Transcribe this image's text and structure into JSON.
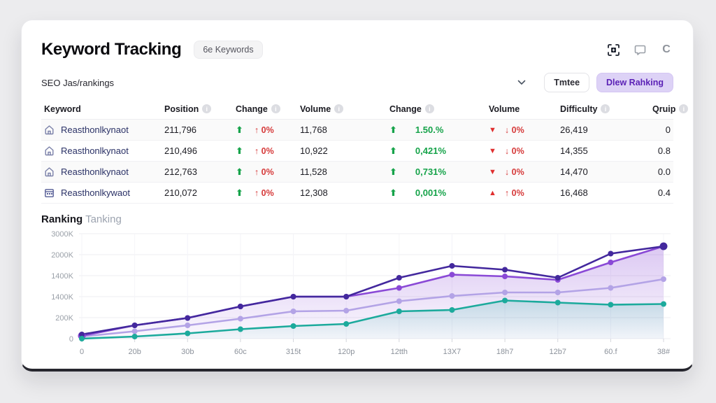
{
  "header": {
    "title": "Keyword Tracking",
    "badge": "6e Keywords",
    "icons": [
      "scan-icon",
      "comment-icon",
      "refresh-icon"
    ],
    "refresh_glyph": "C"
  },
  "filterbar": {
    "source": "SEO Jas/rankings",
    "secondary_button": "Tmtee",
    "primary_button": "Dlew Rahking"
  },
  "colors": {
    "accent_purple": "#5b21b6",
    "accent_purple_bg": "#ddd2f6",
    "green": "#16a34a",
    "red": "#d63a3a",
    "series_indigo": "#43289d",
    "series_purple": "#8a49d6",
    "series_lavender": "#b3a3e6",
    "series_teal": "#1caa9c"
  },
  "table": {
    "columns": [
      {
        "label": "Keyword",
        "info": false
      },
      {
        "label": "Position",
        "info": true
      },
      {
        "label": "Change",
        "info": true
      },
      {
        "label": "Volume",
        "info": true
      },
      {
        "label": "Change",
        "info": true
      },
      {
        "label": "Volume",
        "info": false
      },
      {
        "label": "Difficulty",
        "info": true
      },
      {
        "label": "Qruip",
        "info": true
      }
    ],
    "rows": [
      {
        "icon": "home",
        "keyword": "Reasthonlkynaot",
        "position": "211,796",
        "change_arrow": "⬆",
        "change_pct": "↑ 0%",
        "volume": "11,768",
        "change2_arrow": "⬆",
        "change2_pct": "1.50.%",
        "vol_tri": "▼",
        "vol_pct": "↓ 0%",
        "difficulty": "26,419",
        "qruip": "0"
      },
      {
        "icon": "home",
        "keyword": "Reasthonlkynaot",
        "position": "210,496",
        "change_arrow": "⬆",
        "change_pct": "↑ 0%",
        "volume": "10,922",
        "change2_arrow": "⬆",
        "change2_pct": "0,421%",
        "vol_tri": "▼",
        "vol_pct": "↓ 0%",
        "difficulty": "14,355",
        "qruip": "0.8"
      },
      {
        "icon": "home",
        "keyword": "Reasthonlkynaot",
        "position": "212,763",
        "change_arrow": "⬆",
        "change_pct": "↑ 0%",
        "volume": "11,528",
        "change2_arrow": "⬆",
        "change2_pct": "0,731%",
        "vol_tri": "▼",
        "vol_pct": "↓ 0%",
        "difficulty": "14,470",
        "qruip": "0.0"
      },
      {
        "icon": "calendar",
        "keyword": "Reasthonlkywaot",
        "position": "210,072",
        "change_arrow": "⬆",
        "change_pct": "↑ 0%",
        "volume": "12,308",
        "change2_arrow": "⬆",
        "change2_pct": "0,001%",
        "vol_tri": "▲",
        "vol_pct": "↑ 0%",
        "difficulty": "16,468",
        "qruip": "0.4"
      }
    ]
  },
  "chart_title": {
    "bold": "Ranking",
    "light": " Tanking"
  },
  "chart_data": {
    "type": "line",
    "title": "Ranking Tanking",
    "x_labels": [
      "0",
      "20b",
      "30b",
      "60c",
      "315t",
      "120p",
      "12tth",
      "13X7",
      "18h7",
      "12b7",
      "60.f",
      "38#"
    ],
    "y_labels_top_to_bottom": [
      "3000K",
      "2000K",
      "1400K",
      "1400K",
      "200K",
      "0"
    ],
    "ylim": [
      0,
      3000
    ],
    "grid": true,
    "legend": "none",
    "series": [
      {
        "name": "lavender",
        "color": "#b3a3e6",
        "fill": false,
        "values": [
          60,
          210,
          380,
          570,
          780,
          800,
          1070,
          1220,
          1320,
          1320,
          1450,
          1700
        ]
      },
      {
        "name": "purple",
        "color": "#8a49d6",
        "fill": true,
        "values": [
          80,
          380,
          590,
          920,
          1200,
          1200,
          1450,
          1830,
          1780,
          1680,
          2180,
          2640
        ]
      },
      {
        "name": "indigo",
        "color": "#43289d",
        "fill": false,
        "values": [
          120,
          380,
          590,
          920,
          1200,
          1200,
          1740,
          2080,
          1970,
          1740,
          2430,
          2640
        ]
      },
      {
        "name": "teal",
        "color": "#1caa9c",
        "fill": true,
        "values": [
          0,
          60,
          150,
          270,
          360,
          420,
          780,
          820,
          1090,
          1030,
          970,
          990
        ]
      }
    ]
  }
}
